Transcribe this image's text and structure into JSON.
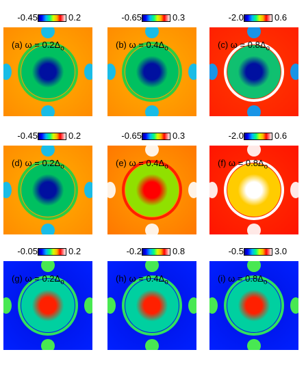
{
  "panels": [
    {
      "id": "a",
      "tag": "(a)",
      "omega": "ω = 0.2Δ",
      "sub": "o",
      "cmin": "-0.45",
      "cmax": "0.2",
      "theme": "warm"
    },
    {
      "id": "b",
      "tag": "(b)",
      "omega": "ω = 0.4Δ",
      "sub": "o",
      "cmin": "-0.65",
      "cmax": "0.3",
      "theme": "warm"
    },
    {
      "id": "c",
      "tag": "(c)",
      "omega": "ω = 0.8Δ",
      "sub": "o",
      "cmin": "-2.0",
      "cmax": "0.6",
      "theme": "hot"
    },
    {
      "id": "d",
      "tag": "(d)",
      "omega": "ω = 0.2Δ",
      "sub": "o",
      "cmin": "-0.45",
      "cmax": "0.2",
      "theme": "warm"
    },
    {
      "id": "e",
      "tag": "(e)",
      "omega": "ω = 0.4Δ",
      "sub": "o",
      "cmin": "-0.65",
      "cmax": "0.3",
      "theme": "warm2"
    },
    {
      "id": "f",
      "tag": "(f)",
      "omega": "ω = 0.8Δ",
      "sub": "o",
      "cmin": "-2.0",
      "cmax": "0.6",
      "theme": "hot2"
    },
    {
      "id": "g",
      "tag": "(g)",
      "omega": "ω = 0.2Δ",
      "sub": "o",
      "cmin": "-0.05",
      "cmax": "0.2",
      "theme": "cold"
    },
    {
      "id": "h",
      "tag": "(h)",
      "omega": "ω = 0.4Δ",
      "sub": "o",
      "cmin": "-0.2",
      "cmax": "0.8",
      "theme": "cold"
    },
    {
      "id": "i",
      "tag": "(i)",
      "omega": "ω = 0.8Δ",
      "sub": "o",
      "cmin": "-0.5",
      "cmax": "3.0",
      "theme": "cold"
    }
  ]
}
